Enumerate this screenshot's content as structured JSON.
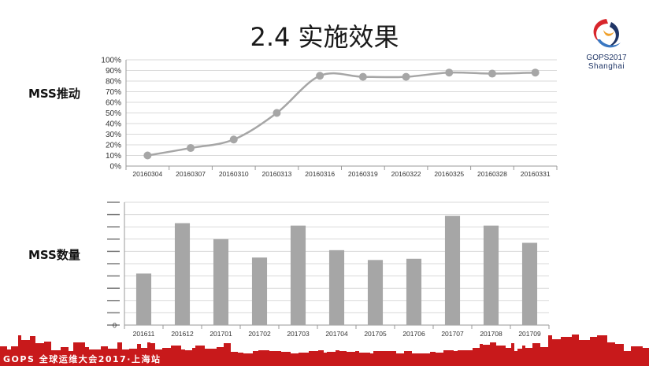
{
  "slide": {
    "title": "2.4 实施效果",
    "logo_line1": "GOPS2017",
    "logo_line2": "Shanghai",
    "footer_text": "GOPS 全球运维大会2017·上海站",
    "colors": {
      "series": "#a6a6a6",
      "footer": "#c8191b",
      "logo_red": "#d8262c",
      "logo_blue": "#1f3566"
    }
  },
  "chart_data": [
    {
      "type": "line",
      "side_label": "MSS推动",
      "categories": [
        "20160304",
        "20160307",
        "20160310",
        "20160313",
        "20160316",
        "20160319",
        "20160322",
        "20160325",
        "20160328",
        "20160331"
      ],
      "values": [
        10,
        17,
        25,
        50,
        85,
        84,
        84,
        88,
        87,
        88
      ],
      "unit": "%",
      "yticks": [
        "0%",
        "10%",
        "20%",
        "30%",
        "40%",
        "50%",
        "60%",
        "70%",
        "80%",
        "90%",
        "100%"
      ],
      "ylim": [
        0,
        100
      ],
      "grid": true
    },
    {
      "type": "bar",
      "side_label": "MSS数量",
      "categories": [
        "201611",
        "201612",
        "201701",
        "201702",
        "201703",
        "201704",
        "201705",
        "201706",
        "201707",
        "201708",
        "201709"
      ],
      "values": [
        4.2,
        8.3,
        7.0,
        5.5,
        8.1,
        6.1,
        5.3,
        5.4,
        8.9,
        8.1,
        6.7
      ],
      "ylim": [
        0,
        10
      ],
      "ytick_zero": "0",
      "grid": true
    }
  ]
}
